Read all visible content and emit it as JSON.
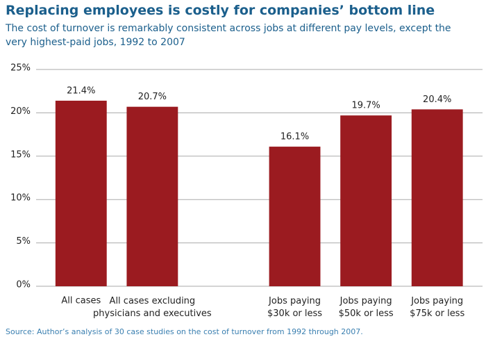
{
  "chart_data": {
    "type": "bar",
    "title": "Replacing employees is costly for companies’ bottom line",
    "subtitle": "The cost of turnover is remarkably consistent across jobs at different pay levels, except the very highest-paid jobs, 1992 to 2007",
    "source": "Source: Author’s analysis of 30 case studies on the cost of turnover from 1992 through 2007.",
    "categories": [
      "All cases",
      "All cases excluding\nphysicians and executives",
      null,
      "Jobs paying\n$30k or less",
      "Jobs paying\n$50k or less",
      "Jobs paying\n$75k or less"
    ],
    "values": [
      21.4,
      20.7,
      null,
      16.1,
      19.7,
      20.4
    ],
    "value_labels": [
      "21.4%",
      "20.7%",
      null,
      "16.1%",
      "19.7%",
      "20.4%"
    ],
    "color": "#9b1b20",
    "ylim": [
      0,
      25
    ],
    "yticks": [
      {
        "value": 0,
        "label": "0%"
      },
      {
        "value": 5,
        "label": "5%"
      },
      {
        "value": 10,
        "label": "10%"
      },
      {
        "value": 15,
        "label": "15%"
      },
      {
        "value": 20,
        "label": "20%"
      },
      {
        "value": 25,
        "label": "25%"
      }
    ],
    "grid": true
  }
}
